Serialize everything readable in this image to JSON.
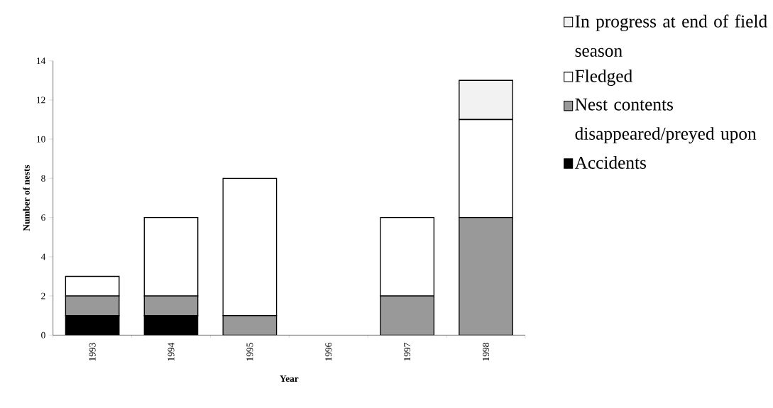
{
  "chart_data": {
    "type": "bar",
    "stacked": true,
    "xlabel": "Year",
    "ylabel": "Number of nests",
    "categories": [
      "1993",
      "1994",
      "1995",
      "1996",
      "1997",
      "1998"
    ],
    "series": [
      {
        "name": "Accidents",
        "color": "#000000",
        "values": [
          1,
          1,
          0,
          0,
          0,
          0
        ]
      },
      {
        "name": "Nest contents disappeared/preyed upon",
        "color": "#999999",
        "values": [
          1,
          1,
          1,
          0,
          2,
          6
        ]
      },
      {
        "name": "Fledged",
        "color": "#ffffff",
        "values": [
          1,
          4,
          7,
          0,
          4,
          5
        ]
      },
      {
        "name": "In progress at end of field season",
        "color": "#f2f2f2",
        "values": [
          0,
          0,
          0,
          0,
          0,
          2
        ]
      }
    ],
    "ylim": [
      0,
      14
    ],
    "yticks": [
      0,
      2,
      4,
      6,
      8,
      10,
      12,
      14
    ],
    "grid": false,
    "legend": "top right"
  }
}
